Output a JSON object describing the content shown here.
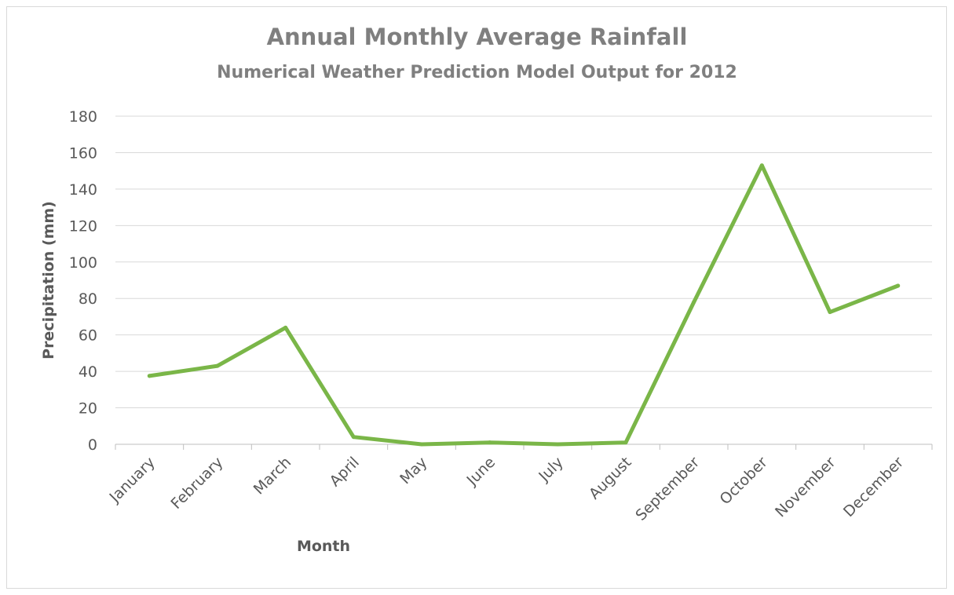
{
  "chart_data": {
    "type": "line",
    "title": "Annual Monthly Average Rainfall",
    "subtitle": "Numerical Weather Prediction Model Output for 2012",
    "xlabel": "Month",
    "ylabel": "Precipitation (mm)",
    "categories": [
      "January",
      "February",
      "March",
      "April",
      "May",
      "June",
      "July",
      "August",
      "September",
      "October",
      "November",
      "December"
    ],
    "series": [
      {
        "values": [
          37.5,
          43,
          64,
          4,
          0,
          1,
          0,
          1,
          78,
          153,
          72.5,
          87
        ],
        "color": "#7ab648"
      }
    ],
    "ylim": [
      0,
      180
    ],
    "yticks": [
      0,
      20,
      40,
      60,
      80,
      100,
      120,
      140,
      160,
      180
    ],
    "grid": true,
    "legend": "none",
    "colors": {
      "gridline": "#d9d9d9",
      "axis": "#bfbfbf",
      "text": "#595959",
      "title": "#7f7f7f"
    }
  }
}
